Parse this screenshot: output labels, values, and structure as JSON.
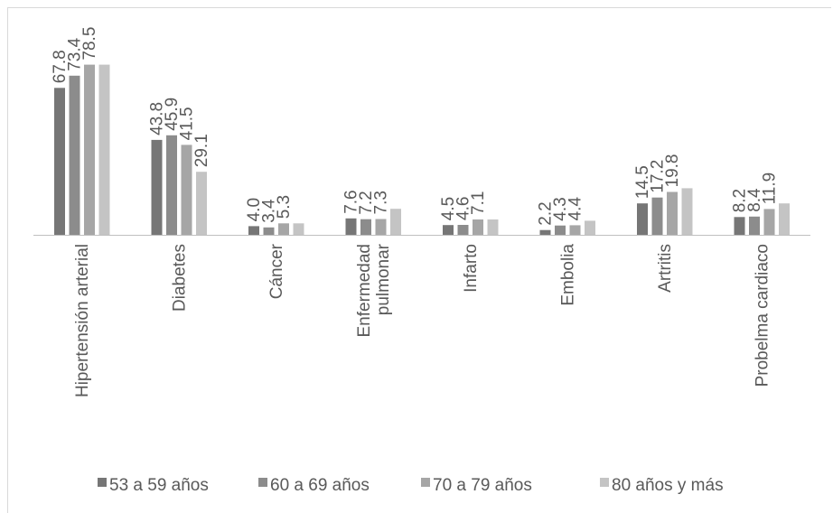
{
  "chart_data": {
    "type": "bar",
    "categories": [
      "Hipertensión arterial",
      "Diabetes",
      "Cáncer",
      "Enfermedad pulmonar",
      "Infarto",
      "Embolia",
      "Artritis",
      "Probelma cardiaco"
    ],
    "category_lines": [
      [
        "Hipertensión arterial"
      ],
      [
        "Diabetes"
      ],
      [
        "Cáncer"
      ],
      [
        "Enfermedad",
        "pulmonar"
      ],
      [
        "Infarto"
      ],
      [
        "Embolia"
      ],
      [
        "Artritis"
      ],
      [
        "Probelma cardiaco"
      ]
    ],
    "series": [
      {
        "name": "53 a 59 años",
        "color": "#767676",
        "values": [
          67.8,
          43.8,
          4.0,
          7.6,
          4.5,
          2.2,
          14.5,
          8.2
        ]
      },
      {
        "name": "60 a 69 años",
        "color": "#8c8c8c",
        "values": [
          73.4,
          45.9,
          3.4,
          7.2,
          4.6,
          4.3,
          17.2,
          8.4
        ]
      },
      {
        "name": "70 a 79 años",
        "color": "#a6a6a6",
        "values": [
          78.5,
          41.5,
          5.3,
          7.3,
          7.1,
          4.4,
          19.8,
          11.9
        ]
      },
      {
        "name": "80 años y más",
        "color": "#c4c4c4",
        "values": [
          78.5,
          29.1,
          5.3,
          12.0,
          7.1,
          6.5,
          21.5,
          14.5
        ]
      }
    ],
    "data_labels": [
      [
        "67.8",
        "73.4",
        "78.5",
        ""
      ],
      [
        "43.8",
        "45.9",
        "41.5",
        "29.1"
      ],
      [
        "4.0",
        "3.4",
        "5.3",
        ""
      ],
      [
        "7.6",
        "7.2",
        "7.3",
        ""
      ],
      [
        "4.5",
        "4.6",
        "7.1",
        ""
      ],
      [
        "2.2",
        "4.3",
        "4.4",
        ""
      ],
      [
        "14.5",
        "17.2",
        "19.8",
        ""
      ],
      [
        "8.2",
        "8.4",
        "11.9",
        ""
      ]
    ],
    "ylim": [
      0,
      80
    ],
    "grid": false,
    "legend_position": "bottom",
    "axis_color": "#bfbfbf"
  }
}
